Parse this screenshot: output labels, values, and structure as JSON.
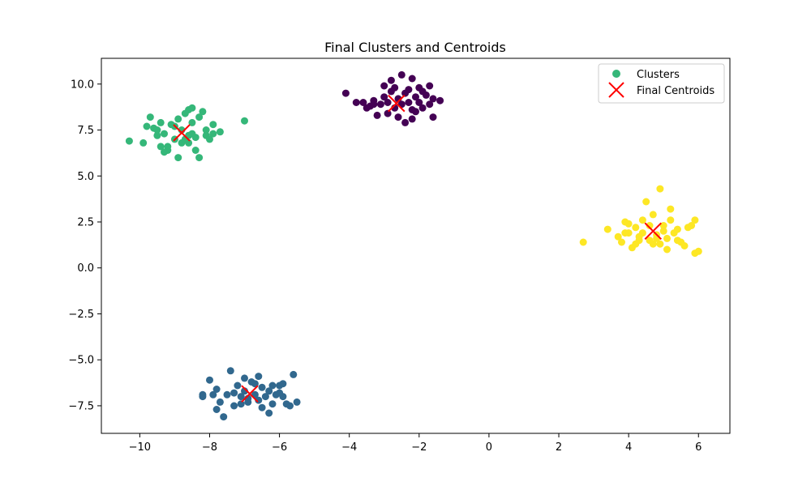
{
  "chart_data": {
    "type": "scatter",
    "title": "Final Clusters and Centroids",
    "xlabel": "",
    "ylabel": "",
    "xlim": [
      -11.1,
      6.9
    ],
    "ylim": [
      -9.0,
      11.4
    ],
    "x_ticks": [
      -10,
      -8,
      -6,
      -4,
      -2,
      0,
      2,
      4,
      6
    ],
    "x_tick_labels": [
      "−10",
      "−8",
      "−6",
      "−4",
      "−2",
      "0",
      "2",
      "4",
      "6"
    ],
    "y_ticks": [
      -7.5,
      -5.0,
      -2.5,
      0.0,
      2.5,
      5.0,
      7.5,
      10.0
    ],
    "y_tick_labels": [
      "−7.5",
      "−5.0",
      "−2.5",
      "0.0",
      "2.5",
      "5.0",
      "7.5",
      "10.0"
    ],
    "grid": false,
    "legend": {
      "placement": "top-right",
      "entries": [
        "Clusters",
        "Final Centroids"
      ]
    },
    "colors": {
      "cluster_0": "#440154",
      "cluster_1": "#31688e",
      "cluster_2": "#35b779",
      "cluster_3": "#fde725",
      "centroid": "#ff0000",
      "legend_marker": "#35b779"
    },
    "clusters": [
      {
        "color_key": "cluster_0",
        "points": [
          [
            -4.1,
            9.5
          ],
          [
            -3.6,
            9.0
          ],
          [
            -3.4,
            8.8
          ],
          [
            -3.3,
            9.1
          ],
          [
            -3.1,
            8.9
          ],
          [
            -3.0,
            9.3
          ],
          [
            -2.9,
            9.0
          ],
          [
            -2.8,
            9.6
          ],
          [
            -2.7,
            8.7
          ],
          [
            -2.6,
            9.2
          ],
          [
            -2.5,
            8.9
          ],
          [
            -2.4,
            9.5
          ],
          [
            -2.3,
            9.0
          ],
          [
            -2.2,
            8.6
          ],
          [
            -2.1,
            9.3
          ],
          [
            -2.0,
            9.0
          ],
          [
            -1.9,
            8.7
          ],
          [
            -1.8,
            9.4
          ],
          [
            -1.7,
            8.9
          ],
          [
            -1.6,
            9.2
          ],
          [
            -2.5,
            10.5
          ],
          [
            -2.2,
            10.3
          ],
          [
            -2.0,
            9.8
          ],
          [
            -2.8,
            10.2
          ],
          [
            -3.0,
            9.9
          ],
          [
            -2.6,
            8.2
          ],
          [
            -2.4,
            7.9
          ],
          [
            -2.2,
            8.1
          ],
          [
            -3.2,
            8.3
          ],
          [
            -3.5,
            8.7
          ],
          [
            -1.6,
            8.2
          ],
          [
            -1.4,
            9.1
          ],
          [
            -3.8,
            9.0
          ],
          [
            -2.9,
            8.4
          ],
          [
            -2.3,
            9.7
          ],
          [
            -1.9,
            9.6
          ],
          [
            -2.7,
            9.8
          ],
          [
            -3.3,
            8.9
          ],
          [
            -2.1,
            8.5
          ],
          [
            -1.7,
            9.9
          ]
        ]
      },
      {
        "color_key": "cluster_1",
        "points": [
          [
            -8.2,
            -7.0
          ],
          [
            -8.0,
            -6.1
          ],
          [
            -7.8,
            -6.6
          ],
          [
            -7.7,
            -7.3
          ],
          [
            -7.5,
            -6.9
          ],
          [
            -7.4,
            -5.6
          ],
          [
            -7.3,
            -7.5
          ],
          [
            -7.2,
            -6.4
          ],
          [
            -7.1,
            -7.0
          ],
          [
            -7.0,
            -6.7
          ],
          [
            -6.9,
            -7.3
          ],
          [
            -6.8,
            -6.2
          ],
          [
            -6.7,
            -6.9
          ],
          [
            -6.6,
            -7.2
          ],
          [
            -6.5,
            -6.5
          ],
          [
            -6.4,
            -7.0
          ],
          [
            -6.3,
            -6.7
          ],
          [
            -6.2,
            -7.4
          ],
          [
            -6.1,
            -6.9
          ],
          [
            -6.0,
            -6.4
          ],
          [
            -5.9,
            -7.0
          ],
          [
            -5.7,
            -7.5
          ],
          [
            -5.6,
            -5.8
          ],
          [
            -5.5,
            -7.3
          ],
          [
            -7.8,
            -7.7
          ],
          [
            -7.6,
            -8.1
          ],
          [
            -6.6,
            -5.9
          ],
          [
            -6.3,
            -7.9
          ],
          [
            -8.2,
            -6.9
          ],
          [
            -7.9,
            -6.9
          ],
          [
            -7.0,
            -6.0
          ],
          [
            -6.0,
            -6.8
          ],
          [
            -5.9,
            -6.3
          ],
          [
            -7.3,
            -6.8
          ],
          [
            -6.7,
            -6.3
          ],
          [
            -6.5,
            -7.6
          ],
          [
            -7.1,
            -7.4
          ],
          [
            -6.2,
            -6.4
          ],
          [
            -5.8,
            -7.4
          ],
          [
            -6.9,
            -7.1
          ]
        ]
      },
      {
        "color_key": "cluster_2",
        "points": [
          [
            -10.3,
            6.9
          ],
          [
            -9.9,
            6.8
          ],
          [
            -9.8,
            7.7
          ],
          [
            -9.7,
            8.2
          ],
          [
            -9.5,
            7.2
          ],
          [
            -9.4,
            6.6
          ],
          [
            -9.3,
            7.3
          ],
          [
            -9.2,
            6.4
          ],
          [
            -9.1,
            7.8
          ],
          [
            -9.0,
            7.0
          ],
          [
            -8.9,
            6.0
          ],
          [
            -8.8,
            7.5
          ],
          [
            -8.7,
            8.4
          ],
          [
            -8.6,
            6.8
          ],
          [
            -8.5,
            7.9
          ],
          [
            -8.4,
            7.1
          ],
          [
            -8.3,
            6.0
          ],
          [
            -8.2,
            8.5
          ],
          [
            -8.1,
            7.5
          ],
          [
            -8.0,
            7.0
          ],
          [
            -7.9,
            7.8
          ],
          [
            -7.7,
            7.4
          ],
          [
            -8.6,
            8.6
          ],
          [
            -8.5,
            8.7
          ],
          [
            -9.6,
            7.6
          ],
          [
            -9.4,
            7.9
          ],
          [
            -9.2,
            6.6
          ],
          [
            -9.0,
            7.7
          ],
          [
            -8.8,
            6.8
          ],
          [
            -8.6,
            7.2
          ],
          [
            -8.4,
            6.4
          ],
          [
            -8.1,
            7.2
          ],
          [
            -7.9,
            7.3
          ],
          [
            -8.3,
            8.2
          ],
          [
            -8.9,
            8.1
          ],
          [
            -9.3,
            6.3
          ],
          [
            -7.0,
            8.0
          ],
          [
            -9.5,
            7.5
          ],
          [
            -8.7,
            7.0
          ],
          [
            -8.5,
            7.3
          ]
        ]
      },
      {
        "color_key": "cluster_3",
        "points": [
          [
            2.7,
            1.4
          ],
          [
            3.4,
            2.1
          ],
          [
            3.7,
            1.7
          ],
          [
            3.8,
            1.4
          ],
          [
            3.9,
            2.5
          ],
          [
            4.0,
            1.9
          ],
          [
            4.1,
            1.1
          ],
          [
            4.2,
            2.2
          ],
          [
            4.3,
            1.7
          ],
          [
            4.4,
            2.6
          ],
          [
            4.5,
            3.6
          ],
          [
            4.6,
            1.5
          ],
          [
            4.7,
            2.9
          ],
          [
            4.8,
            1.8
          ],
          [
            4.9,
            1.3
          ],
          [
            5.0,
            2.3
          ],
          [
            5.1,
            1.0
          ],
          [
            5.2,
            3.2
          ],
          [
            5.3,
            1.9
          ],
          [
            5.4,
            1.5
          ],
          [
            5.5,
            1.4
          ],
          [
            5.6,
            1.2
          ],
          [
            5.7,
            2.2
          ],
          [
            5.8,
            2.3
          ],
          [
            5.9,
            2.6
          ],
          [
            5.9,
            0.8
          ],
          [
            6.0,
            0.9
          ],
          [
            4.9,
            4.3
          ],
          [
            4.0,
            2.4
          ],
          [
            4.2,
            1.3
          ],
          [
            4.4,
            1.9
          ],
          [
            4.6,
            2.3
          ],
          [
            4.8,
            1.6
          ],
          [
            5.0,
            2.0
          ],
          [
            5.2,
            2.6
          ],
          [
            5.4,
            2.1
          ],
          [
            3.9,
            1.9
          ],
          [
            4.3,
            1.5
          ],
          [
            4.7,
            1.3
          ],
          [
            5.1,
            1.6
          ]
        ]
      }
    ],
    "centroids": [
      [
        -2.65,
        8.95
      ],
      [
        -6.85,
        -6.85
      ],
      [
        -8.8,
        7.35
      ],
      [
        4.7,
        2.0
      ]
    ]
  }
}
